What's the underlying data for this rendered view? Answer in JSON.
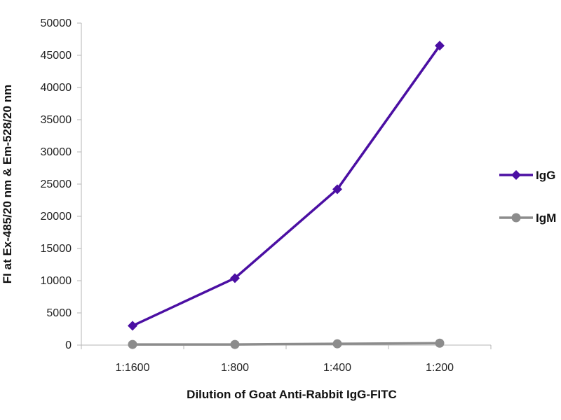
{
  "chart_data": {
    "type": "line",
    "title": "",
    "xlabel": "Dilution of Goat Anti-Rabbit IgG-FITC",
    "ylabel": "FI at Ex-485/20 nm & Em-528/20 nm",
    "categories": [
      "1:1600",
      "1:800",
      "1:400",
      "1:200"
    ],
    "ylim": [
      0,
      50000
    ],
    "yticks": [
      0,
      5000,
      10000,
      15000,
      20000,
      25000,
      30000,
      35000,
      40000,
      45000,
      50000
    ],
    "grid": false,
    "legend_position": "right",
    "series": [
      {
        "name": "IgG",
        "values": [
          3000,
          10400,
          24200,
          46500
        ],
        "color": "#4b0fa3",
        "marker": "diamond"
      },
      {
        "name": "IgM",
        "values": [
          100,
          100,
          200,
          300
        ],
        "color": "#8c8c8c",
        "marker": "circle"
      }
    ]
  }
}
